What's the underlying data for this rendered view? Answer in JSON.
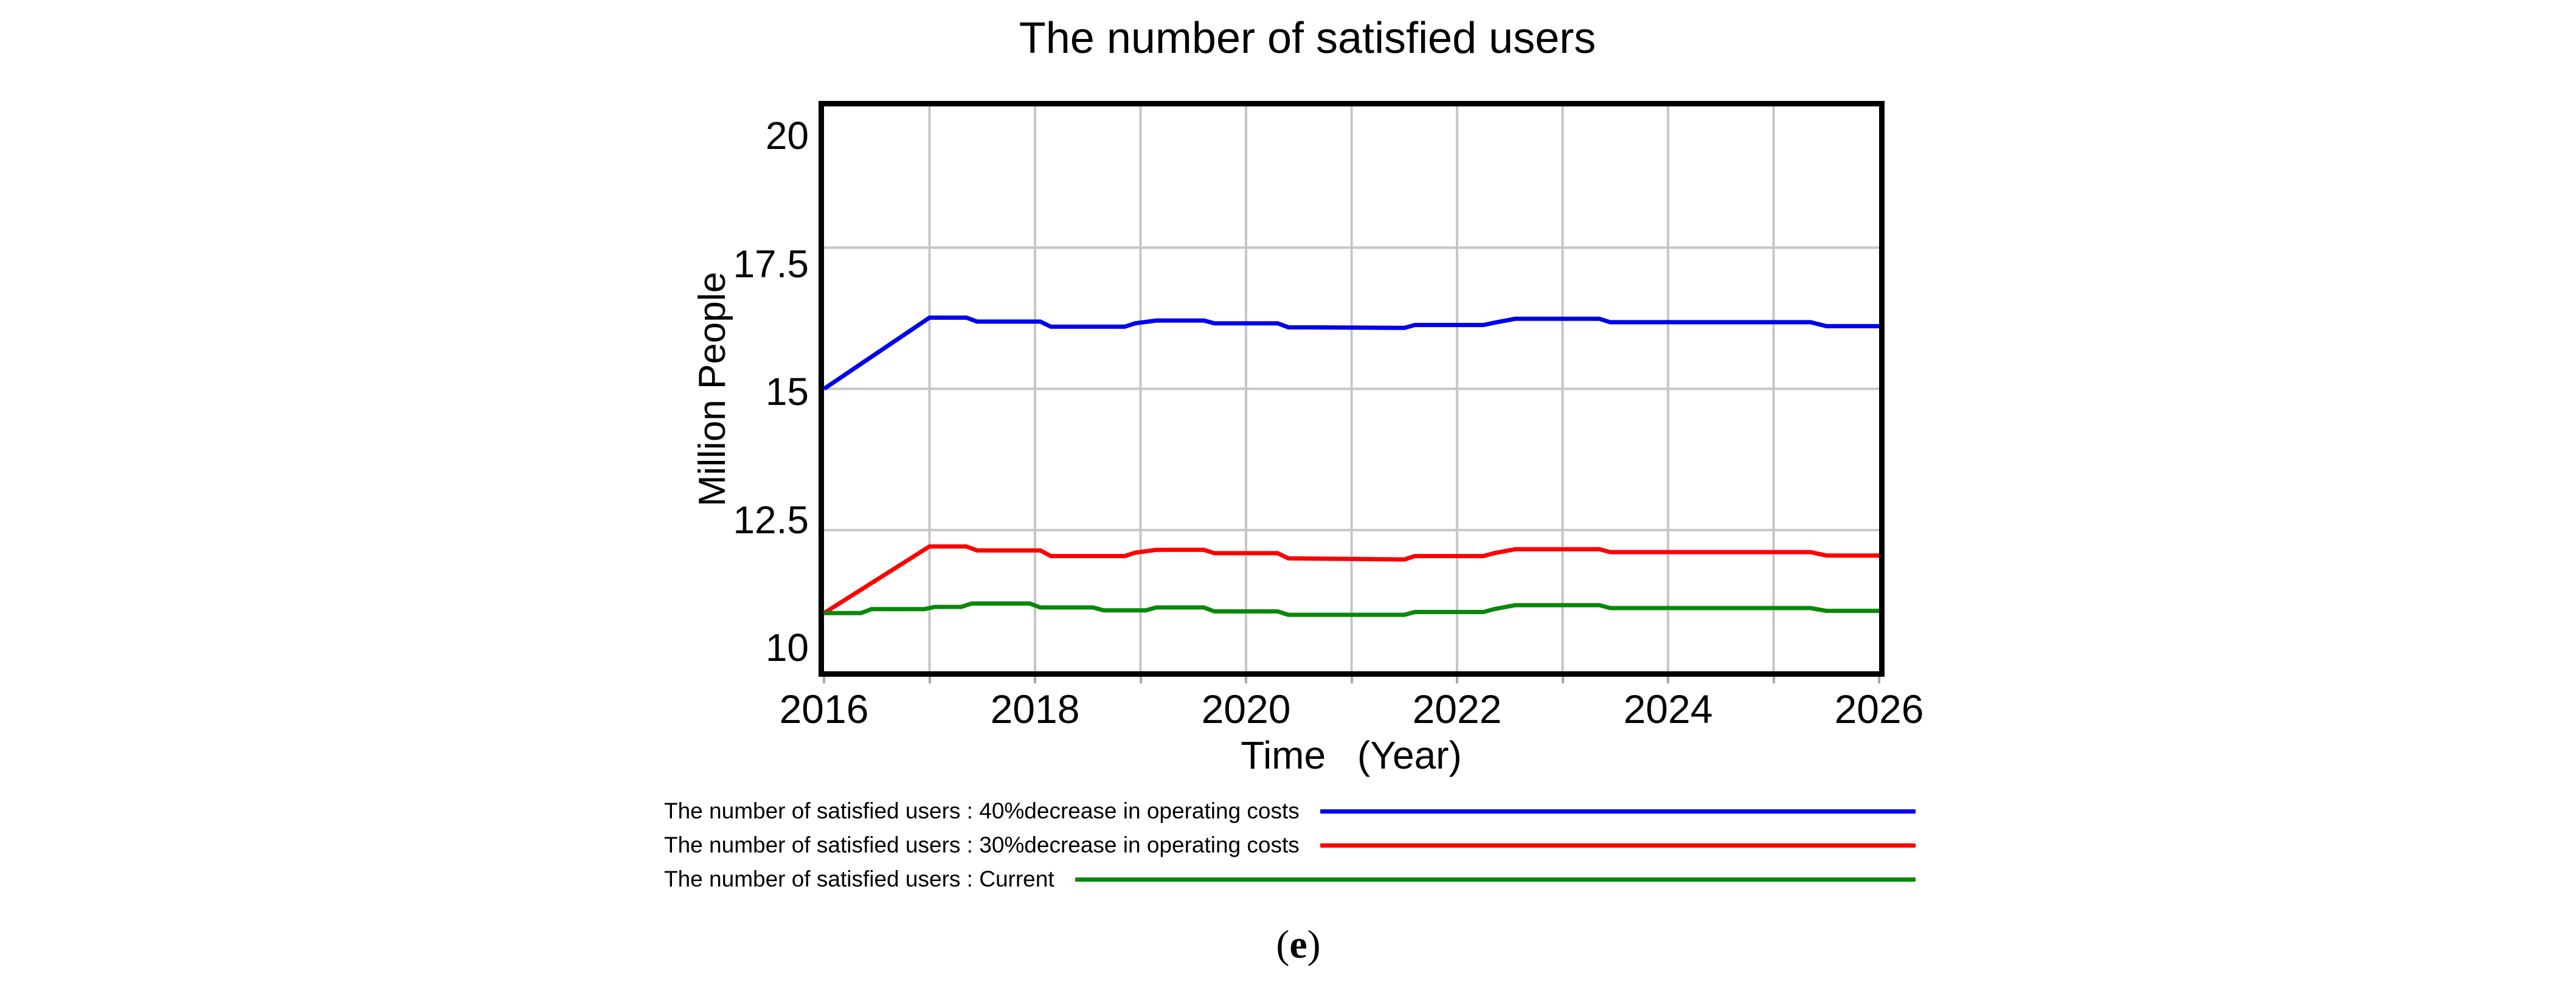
{
  "figure": {
    "title": "The number of satisfied users",
    "y_axis": {
      "label": "Million People"
    },
    "x_axis": {
      "label": "Time (Year)"
    },
    "legend": [
      {
        "label": "The number of satisfied users : 40%decrease in operating costs",
        "color": "#0000ee"
      },
      {
        "label": "The number of satisfied users : 30%decrease in operating costs",
        "color": "#fd0000"
      },
      {
        "label": "The number of satisfied users : Current",
        "color": "#098909"
      }
    ],
    "caption": {
      "open": "(",
      "letter": "e",
      "close": ")"
    }
  },
  "chart_data": {
    "type": "line",
    "title": "The number of satisfied users",
    "xlabel": "Time (Year)",
    "ylabel": "Million People",
    "xlim": [
      2016,
      2026
    ],
    "ylim": [
      10,
      20
    ],
    "x_ticks": [
      2016,
      2018,
      2020,
      2022,
      2024,
      2026
    ],
    "x_gridline_years": [
      2017,
      2018,
      2019,
      2020,
      2021,
      2022,
      2023,
      2024,
      2025
    ],
    "y_ticks": [
      20,
      17.5,
      15,
      12.5,
      10
    ],
    "y_gridlines": [
      17.5,
      15,
      12.5
    ],
    "grid": true,
    "grid_color": "#c6c6c6",
    "legend_position": "bottom-left",
    "series": [
      {
        "name": "The number of satisfied users : 40%decrease in operating costs",
        "color": "#0000ee",
        "points": [
          [
            2016,
            15.0
          ],
          [
            2017,
            16.26
          ],
          [
            2017.35,
            16.26
          ],
          [
            2017.45,
            16.19
          ],
          [
            2018.05,
            16.19
          ],
          [
            2018.15,
            16.1
          ],
          [
            2018.85,
            16.1
          ],
          [
            2018.95,
            16.16
          ],
          [
            2019.15,
            16.21
          ],
          [
            2019.6,
            16.21
          ],
          [
            2019.7,
            16.16
          ],
          [
            2020.3,
            16.16
          ],
          [
            2020.4,
            16.09
          ],
          [
            2021.5,
            16.08
          ],
          [
            2021.6,
            16.13
          ],
          [
            2022.25,
            16.13
          ],
          [
            2022.35,
            16.17
          ],
          [
            2022.55,
            16.24
          ],
          [
            2023.35,
            16.24
          ],
          [
            2023.45,
            16.18
          ],
          [
            2025.35,
            16.18
          ],
          [
            2025.5,
            16.11
          ],
          [
            2026,
            16.11
          ]
        ]
      },
      {
        "name": "The number of satisfied users : 30%decrease in operating costs",
        "color": "#fd0000",
        "points": [
          [
            2016,
            11.03
          ],
          [
            2017,
            12.21
          ],
          [
            2017.35,
            12.21
          ],
          [
            2017.45,
            12.14
          ],
          [
            2018.05,
            12.14
          ],
          [
            2018.15,
            12.04
          ],
          [
            2018.85,
            12.04
          ],
          [
            2018.95,
            12.1
          ],
          [
            2019.15,
            12.15
          ],
          [
            2019.6,
            12.15
          ],
          [
            2019.7,
            12.09
          ],
          [
            2020.3,
            12.09
          ],
          [
            2020.4,
            12.0
          ],
          [
            2021.5,
            11.98
          ],
          [
            2021.6,
            12.04
          ],
          [
            2022.25,
            12.04
          ],
          [
            2022.35,
            12.09
          ],
          [
            2022.55,
            12.16
          ],
          [
            2023.35,
            12.16
          ],
          [
            2023.45,
            12.11
          ],
          [
            2025.35,
            12.11
          ],
          [
            2025.5,
            12.05
          ],
          [
            2026,
            12.05
          ]
        ]
      },
      {
        "name": "The number of satisfied users : Current",
        "color": "#098909",
        "points": [
          [
            2016,
            11.03
          ],
          [
            2016.35,
            11.03
          ],
          [
            2016.45,
            11.1
          ],
          [
            2016.95,
            11.1
          ],
          [
            2017.05,
            11.14
          ],
          [
            2017.3,
            11.14
          ],
          [
            2017.4,
            11.2
          ],
          [
            2017.95,
            11.2
          ],
          [
            2018.05,
            11.13
          ],
          [
            2018.55,
            11.13
          ],
          [
            2018.65,
            11.08
          ],
          [
            2019.05,
            11.08
          ],
          [
            2019.15,
            11.13
          ],
          [
            2019.6,
            11.13
          ],
          [
            2019.7,
            11.06
          ],
          [
            2020.3,
            11.06
          ],
          [
            2020.4,
            11.0
          ],
          [
            2021.5,
            11.0
          ],
          [
            2021.6,
            11.05
          ],
          [
            2022.25,
            11.05
          ],
          [
            2022.35,
            11.1
          ],
          [
            2022.55,
            11.17
          ],
          [
            2023.35,
            11.17
          ],
          [
            2023.45,
            11.12
          ],
          [
            2025.35,
            11.12
          ],
          [
            2025.5,
            11.07
          ],
          [
            2026,
            11.07
          ]
        ]
      }
    ]
  }
}
